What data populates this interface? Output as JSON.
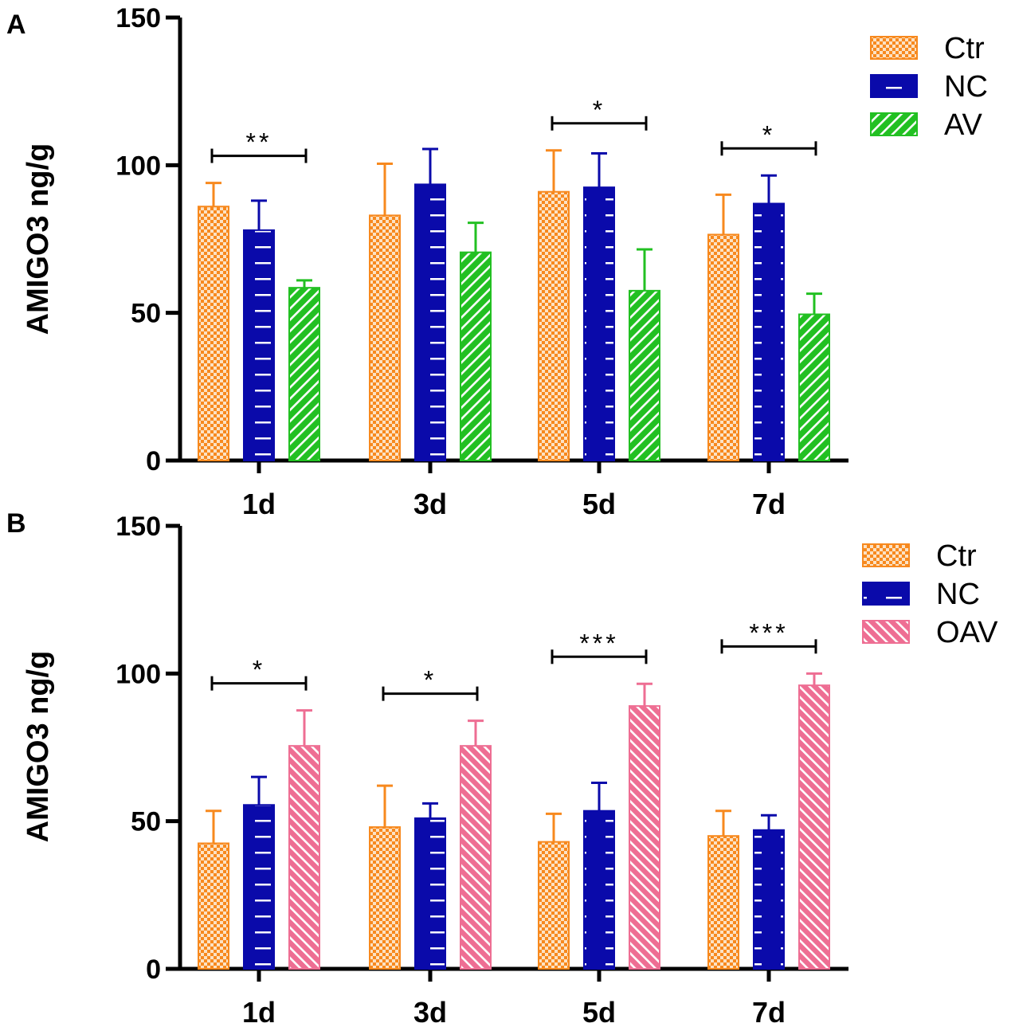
{
  "chart_data": [
    {
      "panel_label": "A",
      "type": "bar",
      "ylabel": "AMIGO3 ng/g",
      "xlabel": "",
      "ylim": [
        0,
        150
      ],
      "yticks": [
        "0",
        "50",
        "100",
        "150"
      ],
      "categories": [
        "1d",
        "3d",
        "5d",
        "7d"
      ],
      "series": [
        {
          "name": "Ctr",
          "pattern": "checker",
          "values": [
            86,
            83,
            91,
            76.5
          ],
          "errors": [
            8,
            17.5,
            14,
            13.5
          ]
        },
        {
          "name": "NC",
          "pattern": "dash",
          "values": [
            78,
            93.5,
            92.5,
            87
          ],
          "errors": [
            10,
            12,
            11.5,
            9.5
          ]
        },
        {
          "name": "AV",
          "pattern": "hatch",
          "values": [
            58.5,
            70.5,
            57.5,
            49.5
          ],
          "errors": [
            2.5,
            10,
            14,
            7
          ]
        }
      ],
      "significance": [
        {
          "category": "1d",
          "label": "**"
        },
        {
          "category": "5d",
          "label": "*"
        },
        {
          "category": "7d",
          "label": "*"
        }
      ],
      "legend_position": "top-right"
    },
    {
      "panel_label": "B",
      "type": "bar",
      "ylabel": "AMIGO3 ng/g",
      "xlabel": "",
      "ylim": [
        0,
        150
      ],
      "yticks": [
        "0",
        "50",
        "100",
        "150"
      ],
      "categories": [
        "1d",
        "3d",
        "5d",
        "7d"
      ],
      "series": [
        {
          "name": "Ctr",
          "pattern": "checker",
          "values": [
            42.5,
            48,
            43,
            45
          ],
          "errors": [
            11,
            14,
            9.5,
            8.5
          ]
        },
        {
          "name": "NC",
          "pattern": "dash",
          "values": [
            55.5,
            51,
            53.5,
            47
          ],
          "errors": [
            9.5,
            5,
            9.5,
            5
          ]
        },
        {
          "name": "OAV",
          "pattern": "hatch2",
          "values": [
            75.5,
            75.5,
            89,
            96
          ],
          "errors": [
            12,
            8.5,
            7.5,
            4
          ]
        }
      ],
      "significance": [
        {
          "category": "1d",
          "label": "*"
        },
        {
          "category": "3d",
          "label": "*"
        },
        {
          "category": "5d",
          "label": "***"
        },
        {
          "category": "7d",
          "label": "***"
        }
      ],
      "legend_position": "top-right"
    }
  ],
  "colors": {
    "Ctr": "#F7891E",
    "NC": "#0A0AAA",
    "AV": "#22C022",
    "OAV": "#EE6E93",
    "axis": "#000000"
  }
}
